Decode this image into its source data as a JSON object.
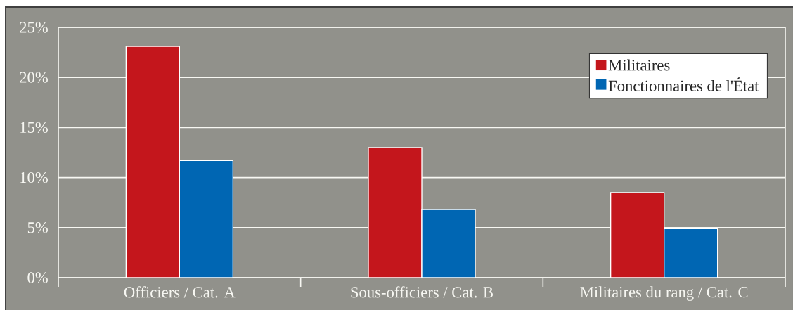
{
  "chart_data": {
    "type": "bar",
    "categories": [
      "Officiers / Cat. A",
      "Sous-officiers / Cat. B",
      "Militaires du rang / Cat. C"
    ],
    "series": [
      {
        "name": "Militaires",
        "color": "#c4161c",
        "values": [
          23.1,
          13.0,
          8.5
        ]
      },
      {
        "name": "Fonctionnaires de l'État",
        "color": "#0066b3",
        "values": [
          11.7,
          6.8,
          4.9
        ]
      }
    ],
    "ylim": [
      0,
      25
    ],
    "yticks": [
      {
        "value": 0,
        "label": "0%"
      },
      {
        "value": 5,
        "label": "5%"
      },
      {
        "value": 10,
        "label": "10%"
      },
      {
        "value": 15,
        "label": "15%"
      },
      {
        "value": 20,
        "label": "20%"
      },
      {
        "value": 25,
        "label": "25%"
      }
    ],
    "grid": "y",
    "legend": "top right"
  }
}
